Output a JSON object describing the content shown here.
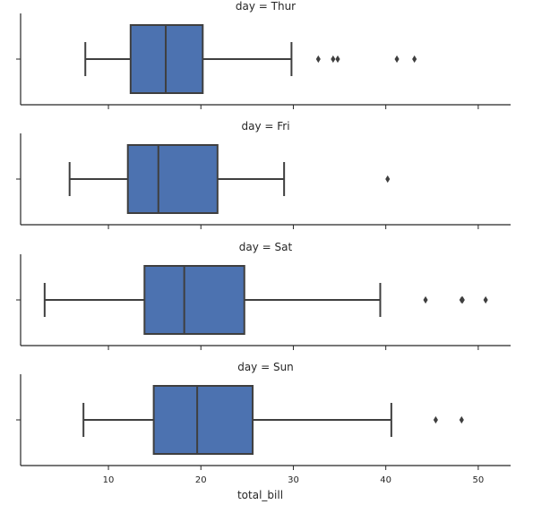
{
  "chart_data": {
    "type": "boxplot",
    "orientation": "horizontal",
    "facet_by": "day",
    "xlabel": "total_bill",
    "xlim": [
      0.5,
      53.5
    ],
    "xticks": [
      10,
      20,
      30,
      40,
      50
    ],
    "xtick_labels": [
      "10",
      "20",
      "30",
      "40",
      "50"
    ],
    "grid": false,
    "colors": {
      "box_fill": "#4C72B0",
      "line": "#3f3f3f",
      "axis": "#262626",
      "background": "#ffffff"
    },
    "panels": [
      {
        "title": "day = Thur",
        "whisker_low": 7.5,
        "q1": 12.4,
        "median": 16.2,
        "q3": 20.2,
        "whisker_high": 29.8,
        "outliers": [
          32.7,
          34.3,
          34.8,
          41.2,
          43.1
        ]
      },
      {
        "title": "day = Fri",
        "whisker_low": 5.8,
        "q1": 12.1,
        "median": 15.4,
        "q3": 21.8,
        "whisker_high": 29.0,
        "outliers": [
          40.2
        ]
      },
      {
        "title": "day = Sat",
        "whisker_low": 3.1,
        "q1": 13.9,
        "median": 18.2,
        "q3": 24.7,
        "whisker_high": 39.4,
        "outliers": [
          44.3,
          48.2,
          48.3,
          50.8
        ]
      },
      {
        "title": "day = Sun",
        "whisker_low": 7.3,
        "q1": 14.9,
        "median": 19.6,
        "q3": 25.6,
        "whisker_high": 40.6,
        "outliers": [
          45.4,
          48.2
        ]
      }
    ]
  }
}
